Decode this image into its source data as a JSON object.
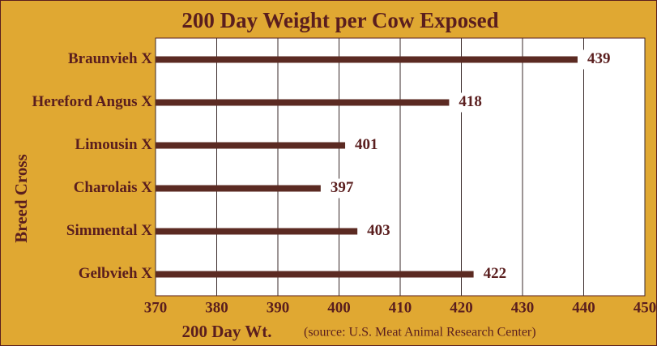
{
  "chart_data": {
    "type": "barh",
    "title": "200 Day Weight per Cow Exposed",
    "xlabel": "200 Day Wt.",
    "ylabel": "Breed Cross",
    "note": "(source: U.S. Meat Animal Research Center)",
    "categories": [
      "Braunvieh X",
      "Hereford Angus X",
      "Limousin X",
      "Charolais X",
      "Simmental X",
      "Gelbvieh X"
    ],
    "values": [
      439,
      418,
      401,
      397,
      403,
      422
    ],
    "color": "#5b2a22",
    "xlim": [
      370,
      450
    ],
    "xticks": [
      370,
      380,
      390,
      400,
      410,
      420,
      430,
      440,
      450
    ],
    "grid": true
  }
}
